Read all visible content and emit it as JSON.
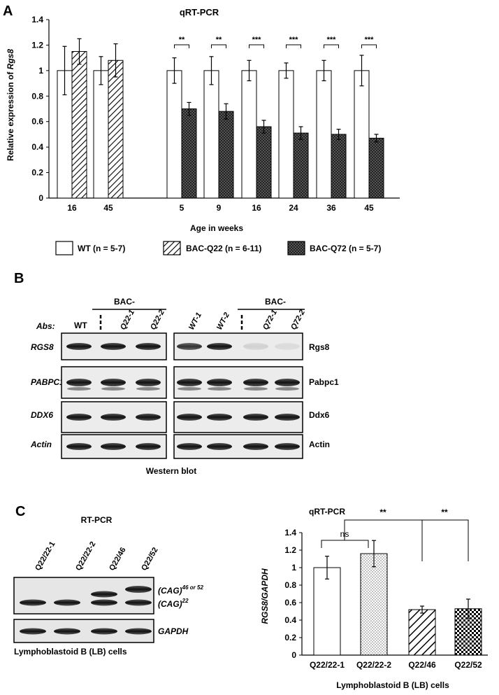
{
  "panels": [
    {
      "letter": "A"
    },
    {
      "letter": "B"
    },
    {
      "letter": "C"
    }
  ],
  "panel_a": {
    "title": "qRT-PCR",
    "ylabel_main": "Relative expression of ",
    "ylabel_gene": "Rgs8",
    "xlabel": "Age in weeks",
    "legend": [
      {
        "label": "WT (n = 5-7)",
        "pattern": "white"
      },
      {
        "label": "BAC-Q22 (n = 6-11)",
        "pattern": "diagonal-hatch"
      },
      {
        "label": "BAC-Q72 (n = 5-7)",
        "pattern": "dense-crosshatch"
      }
    ]
  },
  "panel_b": {
    "abs_label": "Abs:",
    "bac_label": "BAC-",
    "left_lanes": [
      "WT",
      "Q22-1",
      "Q22-2"
    ],
    "right_lanes": [
      "WT-1",
      "WT-2",
      "Q72-1",
      "Q72-2"
    ],
    "left_rows": [
      "RGS8",
      "PABPC1",
      "DDX6",
      "Actin"
    ],
    "right_rows": [
      "Rgs8",
      "Pabpc1",
      "Ddx6",
      "Actin"
    ],
    "caption": "Western blot"
  },
  "panel_c_gel": {
    "title": "RT-PCR",
    "lanes": [
      "Q22/22-1",
      "Q22/22-2",
      "Q22/46",
      "Q22/52"
    ],
    "band_upper_label": "(CAG)",
    "band_upper_sup": "46 or 52",
    "band_lower_label": "(CAG)",
    "band_lower_sup": "22",
    "gapdh_label": "GAPDH",
    "caption": "Lymphoblastoid B (LB) cells"
  },
  "chart_data": [
    {
      "type": "bar",
      "title": "qRT-PCR",
      "ylabel": "Relative expression of Rgs8",
      "xlabel": "Age in weeks",
      "ylim": [
        0,
        1.4
      ],
      "yticks": [
        "0",
        "0.2",
        "0.4",
        "0.6",
        "0.8",
        "1",
        "1.2",
        "1.4"
      ],
      "groups": [
        {
          "label": "16",
          "bars": [
            {
              "series": "WT",
              "value": 1.0,
              "err": 0.19
            },
            {
              "series": "BAC-Q22",
              "value": 1.15,
              "err": 0.1
            }
          ]
        },
        {
          "label": "45",
          "bars": [
            {
              "series": "WT",
              "value": 1.0,
              "err": 0.11
            },
            {
              "series": "BAC-Q22",
              "value": 1.08,
              "err": 0.13
            }
          ]
        },
        {
          "label": "5",
          "sig": "**",
          "bars": [
            {
              "series": "WT",
              "value": 1.0,
              "err": 0.1
            },
            {
              "series": "BAC-Q72",
              "value": 0.7,
              "err": 0.05
            }
          ]
        },
        {
          "label": "9",
          "sig": "**",
          "bars": [
            {
              "series": "WT",
              "value": 1.0,
              "err": 0.11
            },
            {
              "series": "BAC-Q72",
              "value": 0.68,
              "err": 0.06
            }
          ]
        },
        {
          "label": "16",
          "sig": "***",
          "bars": [
            {
              "series": "WT",
              "value": 1.0,
              "err": 0.08
            },
            {
              "series": "BAC-Q72",
              "value": 0.56,
              "err": 0.05
            }
          ]
        },
        {
          "label": "24",
          "sig": "***",
          "bars": [
            {
              "series": "WT",
              "value": 1.0,
              "err": 0.06
            },
            {
              "series": "BAC-Q72",
              "value": 0.51,
              "err": 0.05
            }
          ]
        },
        {
          "label": "36",
          "sig": "***",
          "bars": [
            {
              "series": "WT",
              "value": 1.0,
              "err": 0.08
            },
            {
              "series": "BAC-Q72",
              "value": 0.5,
              "err": 0.04
            }
          ]
        },
        {
          "label": "45",
          "sig": "***",
          "bars": [
            {
              "series": "WT",
              "value": 1.0,
              "err": 0.12
            },
            {
              "series": "BAC-Q72",
              "value": 0.47,
              "err": 0.03
            }
          ]
        }
      ]
    },
    {
      "type": "bar",
      "title": "qRT-PCR",
      "ylabel": "RGS8/GAPDH",
      "xlabel": "Lymphoblastoid B (LB) cells",
      "ylim": [
        0,
        1.4
      ],
      "yticks": [
        "0",
        "0.2",
        "0.4",
        "0.6",
        "0.8",
        "1",
        "1.2",
        "1.4"
      ],
      "categories": [
        "Q22/22-1",
        "Q22/22-2",
        "Q22/46",
        "Q22/52"
      ],
      "values": [
        1.0,
        1.16,
        0.52,
        0.53
      ],
      "errors": [
        0.13,
        0.15,
        0.04,
        0.11
      ],
      "patterns": [
        "white",
        "dotted",
        "diagonal-hatch",
        "checker"
      ],
      "annotations": [
        "ns",
        "**",
        "**"
      ]
    }
  ]
}
